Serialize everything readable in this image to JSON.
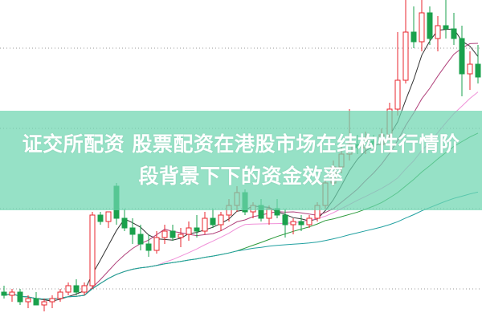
{
  "title_lines": [
    "证交所配资 股票配资在港股市场在结构性行情阶",
    "段背景下下的资金效率"
  ],
  "colors": {
    "up": "#e8262c",
    "down": "#1aa14c",
    "banner": "#6ed6b0",
    "grid": "#999999",
    "ma": [
      "#333333",
      "#b0407a",
      "#f090d8",
      "#2a9a3a",
      "#20a0a0"
    ]
  },
  "chart_data": {
    "type": "candlestick",
    "title": "",
    "ylim": [
      0,
      100
    ],
    "grid": true,
    "moving_averages": [
      5,
      10,
      20,
      30,
      60
    ],
    "ohlc": [
      [
        9,
        11,
        7,
        8
      ],
      [
        8,
        10,
        6,
        9
      ],
      [
        9,
        10,
        5,
        6
      ],
      [
        6,
        8,
        4,
        7
      ],
      [
        7,
        9,
        5,
        5
      ],
      [
        5,
        7,
        3,
        6
      ],
      [
        6,
        8,
        4,
        7
      ],
      [
        7,
        10,
        6,
        9
      ],
      [
        9,
        12,
        8,
        11
      ],
      [
        11,
        13,
        8,
        9
      ],
      [
        9,
        12,
        8,
        11
      ],
      [
        11,
        34,
        10,
        33
      ],
      [
        33,
        34,
        30,
        31
      ],
      [
        31,
        34,
        29,
        34
      ],
      [
        42,
        43,
        30,
        32
      ],
      [
        32,
        35,
        28,
        29
      ],
      [
        29,
        32,
        24,
        27
      ],
      [
        27,
        30,
        22,
        24
      ],
      [
        24,
        27,
        20,
        22
      ],
      [
        22,
        28,
        21,
        26
      ],
      [
        26,
        30,
        24,
        28
      ],
      [
        28,
        30,
        25,
        26
      ],
      [
        26,
        29,
        23,
        27
      ],
      [
        27,
        31,
        25,
        29
      ],
      [
        29,
        33,
        26,
        28
      ],
      [
        28,
        34,
        27,
        32
      ],
      [
        32,
        35,
        29,
        30
      ],
      [
        30,
        34,
        28,
        33
      ],
      [
        33,
        38,
        31,
        36
      ],
      [
        36,
        42,
        34,
        40
      ],
      [
        40,
        41,
        33,
        34
      ],
      [
        34,
        37,
        32,
        36
      ],
      [
        36,
        38,
        31,
        32
      ],
      [
        32,
        36,
        30,
        35
      ],
      [
        35,
        38,
        32,
        33
      ],
      [
        33,
        35,
        26,
        30
      ],
      [
        30,
        32,
        27,
        31
      ],
      [
        31,
        33,
        28,
        30
      ],
      [
        30,
        33,
        29,
        32
      ],
      [
        32,
        37,
        31,
        36
      ],
      [
        36,
        44,
        35,
        43
      ],
      [
        43,
        50,
        42,
        48
      ],
      [
        48,
        56,
        46,
        52
      ],
      [
        52,
        66,
        50,
        55
      ],
      [
        55,
        58,
        52,
        54
      ],
      [
        54,
        59,
        52,
        56
      ],
      [
        56,
        58,
        53,
        55
      ],
      [
        55,
        60,
        54,
        58
      ],
      [
        58,
        68,
        56,
        66
      ],
      [
        66,
        90,
        64,
        75
      ],
      [
        75,
        100,
        74,
        90
      ],
      [
        90,
        98,
        85,
        87
      ],
      [
        87,
        100,
        84,
        96
      ],
      [
        96,
        98,
        86,
        88
      ],
      [
        88,
        95,
        84,
        92
      ],
      [
        92,
        100,
        88,
        91
      ],
      [
        91,
        96,
        86,
        88
      ],
      [
        88,
        92,
        70,
        77
      ],
      [
        77,
        84,
        72,
        80
      ],
      [
        80,
        86,
        74,
        76
      ]
    ]
  }
}
